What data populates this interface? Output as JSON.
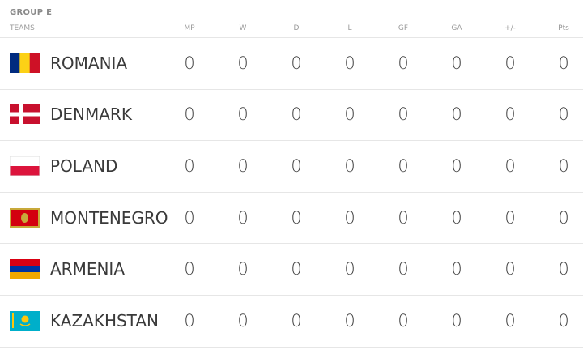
{
  "header": {
    "title": "GROUP E"
  },
  "table": {
    "columns": [
      "TEAMS",
      "MP",
      "W",
      "D",
      "L",
      "GF",
      "GA",
      "+/-",
      "Pts"
    ],
    "rows": [
      [
        "ROMANIA",
        0,
        0,
        0,
        0,
        0,
        0,
        0,
        0
      ],
      [
        "DENMARK",
        0,
        0,
        0,
        0,
        0,
        0,
        0,
        0
      ],
      [
        "POLAND",
        0,
        0,
        0,
        0,
        0,
        0,
        0,
        0
      ],
      [
        "MONTENEGRO",
        0,
        0,
        0,
        0,
        0,
        0,
        0,
        0
      ],
      [
        "ARMENIA",
        0,
        0,
        0,
        0,
        0,
        0,
        0,
        0
      ],
      [
        "KAZAKHSTAN",
        0,
        0,
        0,
        0,
        0,
        0,
        0,
        0
      ]
    ]
  }
}
